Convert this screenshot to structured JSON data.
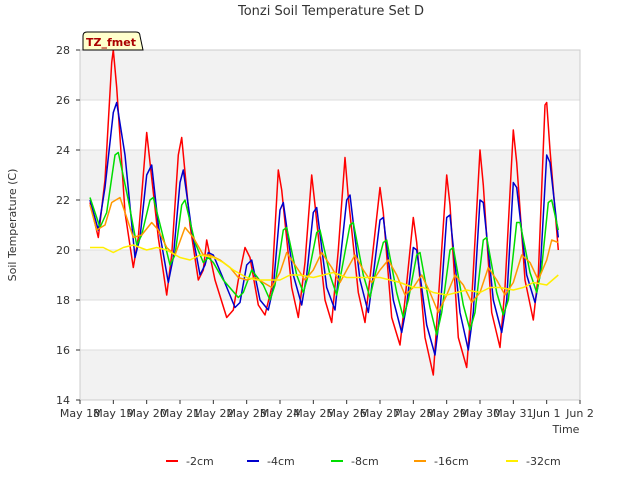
{
  "chart_data": {
    "type": "line",
    "title": "Tonzi Soil Temperature Set D",
    "xlabel": "Time",
    "ylabel": "Soil Temperature (C)",
    "annotation": "TZ_fmet",
    "xlim": [
      18,
      33
    ],
    "ylim": [
      14,
      28
    ],
    "x_ticks": [
      {
        "x": 18,
        "label": "May 18"
      },
      {
        "x": 19,
        "label": "May 19"
      },
      {
        "x": 20,
        "label": "May 20"
      },
      {
        "x": 21,
        "label": "May 21"
      },
      {
        "x": 22,
        "label": "May 22"
      },
      {
        "x": 23,
        "label": "May 23"
      },
      {
        "x": 24,
        "label": "May 24"
      },
      {
        "x": 25,
        "label": "May 25"
      },
      {
        "x": 26,
        "label": "May 26"
      },
      {
        "x": 27,
        "label": "May 27"
      },
      {
        "x": 28,
        "label": "May 28"
      },
      {
        "x": 29,
        "label": "May 29"
      },
      {
        "x": 30,
        "label": "May 30"
      },
      {
        "x": 31,
        "label": "May 31"
      },
      {
        "x": 32,
        "label": "Jun 1"
      },
      {
        "x": 33,
        "label": "Jun 2"
      }
    ],
    "y_ticks": [
      14,
      16,
      18,
      20,
      22,
      24,
      26,
      28
    ],
    "grid": true,
    "legend_position": "bottom",
    "series": [
      {
        "name": "-2cm",
        "color": "#ff0000",
        "x": [
          18.3,
          18.55,
          18.75,
          18.95,
          19.0,
          19.1,
          19.35,
          19.6,
          19.75,
          20.0,
          20.1,
          20.35,
          20.6,
          20.75,
          20.95,
          21.05,
          21.3,
          21.55,
          21.7,
          21.8,
          22.05,
          22.4,
          22.6,
          22.75,
          22.95,
          23.1,
          23.35,
          23.55,
          23.75,
          23.95,
          24.05,
          24.35,
          24.55,
          24.75,
          24.95,
          25.05,
          25.35,
          25.55,
          25.75,
          25.95,
          26.05,
          26.35,
          26.55,
          26.75,
          27.0,
          27.1,
          27.35,
          27.6,
          27.75,
          28.0,
          28.1,
          28.35,
          28.6,
          28.75,
          29.0,
          29.1,
          29.35,
          29.6,
          29.75,
          30.0,
          30.1,
          30.35,
          30.6,
          30.75,
          31.0,
          31.1,
          31.35,
          31.6,
          31.75,
          31.95,
          32.0,
          32.1,
          32.35
        ],
        "y": [
          21.9,
          20.5,
          22.8,
          27.5,
          28.0,
          26.5,
          21.5,
          19.3,
          20.5,
          24.7,
          23.5,
          20.5,
          18.2,
          19.8,
          23.8,
          24.5,
          21.0,
          18.8,
          19.2,
          20.4,
          18.8,
          17.3,
          17.6,
          18.8,
          20.1,
          19.7,
          17.8,
          17.4,
          18.5,
          23.2,
          22.4,
          18.5,
          17.3,
          19.5,
          23.0,
          21.8,
          18.0,
          17.1,
          20.0,
          23.7,
          22.1,
          18.3,
          17.1,
          19.5,
          22.5,
          21.5,
          17.3,
          16.2,
          18.0,
          21.3,
          20.3,
          16.5,
          15.0,
          18.0,
          23.0,
          21.8,
          16.5,
          15.3,
          18.0,
          24.0,
          22.6,
          17.5,
          16.1,
          18.5,
          24.8,
          23.5,
          18.8,
          17.2,
          19.0,
          25.8,
          25.9,
          24.0,
          20.0
        ]
      },
      {
        "name": "-4cm",
        "color": "#0000cc",
        "x": [
          18.3,
          18.55,
          18.75,
          19.0,
          19.1,
          19.35,
          19.65,
          19.8,
          20.0,
          20.15,
          20.35,
          20.65,
          20.8,
          21.0,
          21.1,
          21.35,
          21.6,
          21.75,
          21.85,
          22.0,
          22.25,
          22.65,
          22.8,
          23.0,
          23.15,
          23.4,
          23.65,
          23.8,
          24.0,
          24.1,
          24.4,
          24.65,
          24.8,
          25.0,
          25.1,
          25.4,
          25.65,
          25.8,
          26.0,
          26.1,
          26.4,
          26.65,
          26.8,
          27.0,
          27.1,
          27.4,
          27.65,
          27.8,
          28.0,
          28.1,
          28.4,
          28.65,
          28.8,
          29.0,
          29.1,
          29.4,
          29.65,
          29.8,
          30.0,
          30.1,
          30.4,
          30.65,
          30.8,
          31.0,
          31.1,
          31.4,
          31.65,
          31.8,
          32.0,
          32.1,
          32.35
        ],
        "y": [
          22.0,
          20.8,
          22.5,
          25.5,
          25.9,
          23.8,
          19.7,
          20.5,
          23.0,
          23.4,
          21.0,
          18.7,
          19.7,
          22.7,
          23.2,
          20.8,
          19.0,
          19.4,
          19.9,
          19.8,
          19.0,
          17.7,
          17.9,
          19.4,
          19.6,
          18.0,
          17.6,
          18.5,
          21.6,
          21.9,
          19.0,
          17.8,
          19.0,
          21.5,
          21.7,
          18.5,
          17.6,
          19.5,
          22.0,
          22.2,
          18.8,
          17.5,
          19.0,
          21.2,
          21.3,
          18.0,
          16.7,
          17.8,
          20.1,
          20.0,
          17.0,
          15.8,
          17.5,
          21.3,
          21.4,
          17.5,
          16.0,
          17.5,
          22.0,
          21.9,
          18.0,
          16.7,
          18.0,
          22.7,
          22.5,
          19.0,
          17.9,
          19.0,
          23.8,
          23.5,
          20.5
        ]
      },
      {
        "name": "-8cm",
        "color": "#00dd00",
        "x": [
          18.3,
          18.6,
          18.8,
          19.05,
          19.15,
          19.45,
          19.7,
          19.85,
          20.1,
          20.2,
          20.5,
          20.7,
          20.85,
          21.05,
          21.15,
          21.45,
          21.7,
          21.85,
          22.0,
          22.3,
          22.75,
          22.9,
          23.15,
          23.5,
          23.7,
          23.85,
          24.1,
          24.2,
          24.5,
          24.7,
          24.85,
          25.1,
          25.2,
          25.5,
          25.7,
          25.85,
          26.1,
          26.2,
          26.5,
          26.7,
          26.85,
          27.1,
          27.2,
          27.5,
          27.7,
          27.85,
          28.1,
          28.2,
          28.5,
          28.7,
          28.85,
          29.1,
          29.2,
          29.5,
          29.7,
          29.85,
          30.1,
          30.2,
          30.5,
          30.7,
          30.85,
          31.1,
          31.2,
          31.5,
          31.7,
          31.85,
          32.05,
          32.15,
          32.35
        ],
        "y": [
          22.1,
          20.9,
          21.5,
          23.8,
          23.9,
          22.0,
          20.2,
          20.6,
          22.0,
          22.1,
          20.5,
          19.4,
          19.8,
          21.8,
          22.0,
          20.3,
          19.5,
          19.7,
          19.5,
          18.8,
          18.1,
          18.3,
          19.2,
          18.6,
          18.0,
          18.6,
          20.8,
          20.9,
          19.0,
          18.3,
          19.0,
          20.7,
          20.8,
          19.0,
          18.2,
          19.2,
          21.0,
          21.1,
          19.0,
          18.1,
          19.0,
          20.3,
          20.4,
          18.3,
          17.3,
          18.0,
          19.8,
          19.9,
          17.7,
          16.6,
          17.5,
          20.0,
          20.1,
          17.8,
          16.8,
          17.5,
          20.4,
          20.5,
          18.3,
          17.4,
          18.0,
          21.1,
          21.1,
          19.1,
          18.3,
          19.3,
          21.9,
          22.0,
          20.8
        ]
      },
      {
        "name": "-16cm",
        "color": "#ff9900",
        "x": [
          18.3,
          18.5,
          18.75,
          18.95,
          19.2,
          19.4,
          19.6,
          19.85,
          20.15,
          20.35,
          20.6,
          20.85,
          21.15,
          21.4,
          21.7,
          21.9,
          22.2,
          22.5,
          22.75,
          23.0,
          23.25,
          23.5,
          23.75,
          24.0,
          24.2,
          24.5,
          24.75,
          25.0,
          25.25,
          25.55,
          25.8,
          26.0,
          26.25,
          26.5,
          26.75,
          27.0,
          27.25,
          27.5,
          27.75,
          28.0,
          28.25,
          28.5,
          28.75,
          29.0,
          29.25,
          29.5,
          29.75,
          30.0,
          30.25,
          30.5,
          30.75,
          31.0,
          31.25,
          31.5,
          31.75,
          32.0,
          32.15,
          32.35
        ],
        "y": [
          21.8,
          20.8,
          21.0,
          21.9,
          22.1,
          21.3,
          20.5,
          20.6,
          21.1,
          20.8,
          20.1,
          19.8,
          20.9,
          20.5,
          19.8,
          19.8,
          19.6,
          19.3,
          18.9,
          18.8,
          18.9,
          18.7,
          18.5,
          19.1,
          19.9,
          19.3,
          18.8,
          19.2,
          19.9,
          19.3,
          18.7,
          19.2,
          19.8,
          19.2,
          18.7,
          19.2,
          19.6,
          19.0,
          18.2,
          18.5,
          19.0,
          18.3,
          17.5,
          18.2,
          19.0,
          18.6,
          17.9,
          18.3,
          19.3,
          18.8,
          18.2,
          18.7,
          19.8,
          19.5,
          18.8,
          19.6,
          20.4,
          20.3
        ]
      },
      {
        "name": "-32cm",
        "color": "#ffee00",
        "x": [
          18.3,
          18.7,
          19.0,
          19.3,
          19.6,
          20.0,
          20.3,
          20.6,
          21.0,
          21.3,
          21.6,
          22.0,
          22.3,
          22.6,
          23.0,
          23.3,
          23.6,
          24.0,
          24.3,
          24.6,
          25.0,
          25.3,
          25.6,
          26.0,
          26.3,
          26.6,
          27.0,
          27.3,
          27.6,
          28.0,
          28.3,
          28.6,
          29.0,
          29.3,
          29.6,
          30.0,
          30.3,
          30.6,
          31.0,
          31.3,
          31.6,
          32.0,
          32.35
        ],
        "y": [
          20.1,
          20.1,
          19.9,
          20.1,
          20.2,
          20.0,
          20.1,
          20.0,
          19.7,
          19.6,
          19.8,
          19.7,
          19.5,
          19.2,
          18.9,
          18.8,
          18.8,
          18.8,
          19.0,
          19.0,
          18.9,
          19.0,
          19.1,
          18.9,
          18.9,
          18.9,
          18.9,
          18.8,
          18.7,
          18.5,
          18.5,
          18.3,
          18.2,
          18.3,
          18.4,
          18.3,
          18.5,
          18.5,
          18.4,
          18.5,
          18.7,
          18.6,
          19.0
        ]
      }
    ]
  }
}
